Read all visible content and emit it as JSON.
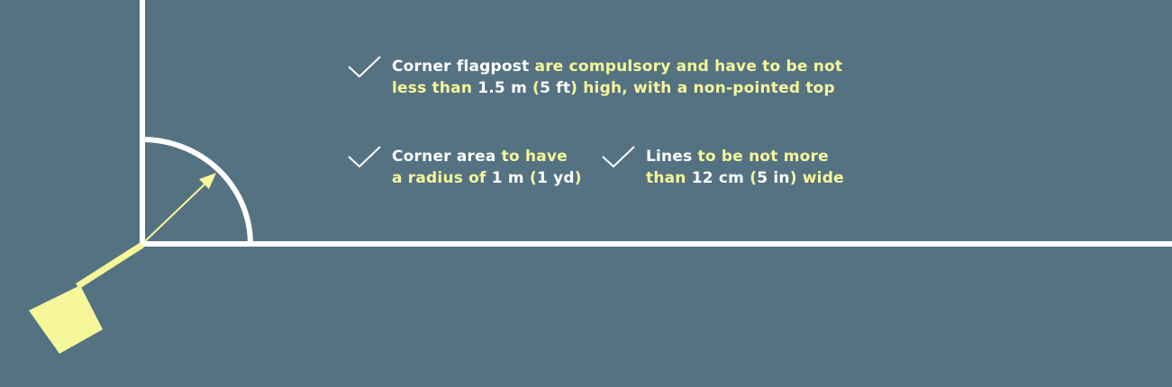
{
  "colors": {
    "background": "#557282",
    "pitch_lines": "#ffffff",
    "accent_yellow": "#f6f79a",
    "text_white": "#ffffff"
  },
  "icons": {
    "check": "check-icon",
    "flag": "corner-flag-icon"
  },
  "notes": {
    "flagpost": {
      "line1": {
        "subject": "Corner flagpost",
        "rest": " are compulsory and have to be not"
      },
      "line2": {
        "a": "less than ",
        "b": "1.5 m",
        "c": " (",
        "d": "5 ft",
        "e": ") high, with a non-pointed top"
      }
    },
    "corner_area": {
      "line1": {
        "subject": "Corner area",
        "rest": " to have"
      },
      "line2": {
        "a": "a radius of ",
        "b": "1 m",
        "c": " (",
        "d": "1 yd",
        "e": ")"
      }
    },
    "lines": {
      "line1": {
        "subject": "Lines",
        "rest": " to be not more"
      },
      "line2": {
        "a": "than ",
        "b": "12 cm",
        "c": " (",
        "d": "5 in",
        "e": ") wide"
      }
    }
  }
}
